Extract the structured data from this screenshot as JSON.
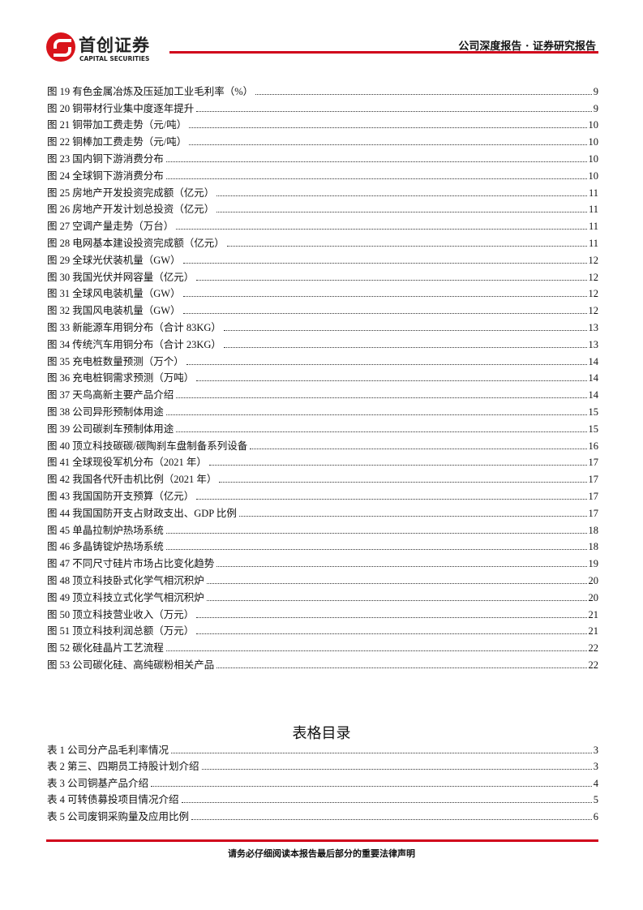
{
  "header": {
    "logo_cn": "首创证券",
    "logo_en": "CAPITAL SECURITIES",
    "title": "公司深度报告 · 证券研究报告",
    "brand_color": "#d0021b"
  },
  "figures": [
    {
      "label": "图 19 有色金属冶炼及压延加工业毛利率（%）",
      "page": "9"
    },
    {
      "label": "图 20 铜带材行业集中度逐年提升",
      "page": "9"
    },
    {
      "label": "图 21 铜带加工费走势（元/吨）",
      "page": "10"
    },
    {
      "label": "图 22 铜棒加工费走势（元/吨）",
      "page": "10"
    },
    {
      "label": "图 23 国内铜下游消费分布",
      "page": "10"
    },
    {
      "label": "图 24 全球铜下游消费分布",
      "page": "10"
    },
    {
      "label": "图 25 房地产开发投资完成额（亿元）",
      "page": "11"
    },
    {
      "label": "图 26 房地产开发计划总投资（亿元）",
      "page": "11"
    },
    {
      "label": "图 27 空调产量走势（万台）",
      "page": "11"
    },
    {
      "label": "图 28 电网基本建设投资完成额（亿元）",
      "page": "11"
    },
    {
      "label": "图 29 全球光伏装机量（GW）",
      "page": "12"
    },
    {
      "label": "图 30 我国光伏并网容量（亿元）",
      "page": "12"
    },
    {
      "label": "图 31 全球风电装机量（GW）",
      "page": "12"
    },
    {
      "label": "图 32 我国风电装机量（GW）",
      "page": "12"
    },
    {
      "label": "图 33 新能源车用铜分布（合计 83KG）",
      "page": "13"
    },
    {
      "label": "图 34 传统汽车用铜分布（合计 23KG）",
      "page": "13"
    },
    {
      "label": "图 35 充电桩数量预测（万个）",
      "page": "14"
    },
    {
      "label": "图 36 充电桩铜需求预测（万吨）",
      "page": "14"
    },
    {
      "label": "图 37 天鸟高新主要产品介绍",
      "page": "14"
    },
    {
      "label": "图 38 公司异形预制体用途",
      "page": "15"
    },
    {
      "label": "图 39 公司碳刹车预制体用途",
      "page": "15"
    },
    {
      "label": "图 40 顶立科技碳碳/碳陶刹车盘制备系列设备",
      "page": "16"
    },
    {
      "label": "图 41 全球现役军机分布（2021 年）",
      "page": "17"
    },
    {
      "label": "图 42 我国各代歼击机比例（2021 年）",
      "page": "17"
    },
    {
      "label": "图 43 我国国防开支预算（亿元）",
      "page": "17"
    },
    {
      "label": "图 44 我国国防开支占财政支出、GDP 比例",
      "page": "17"
    },
    {
      "label": "图 45 单晶拉制炉热场系统",
      "page": "18"
    },
    {
      "label": "图 46 多晶铸锭炉热场系统",
      "page": "18"
    },
    {
      "label": "图 47 不同尺寸硅片市场占比变化趋势",
      "page": "19"
    },
    {
      "label": "图 48 顶立科技卧式化学气相沉积炉",
      "page": "20"
    },
    {
      "label": "图 49 顶立科技立式化学气相沉积炉",
      "page": "20"
    },
    {
      "label": "图 50 顶立科技营业收入（万元）",
      "page": "21"
    },
    {
      "label": "图 51 顶立科技利润总额（万元）",
      "page": "21"
    },
    {
      "label": "图 52 碳化硅晶片工艺流程",
      "page": "22"
    },
    {
      "label": "图 53 公司碳化硅、高纯碳粉相关产品",
      "page": "22"
    }
  ],
  "tables_title": "表格目录",
  "tables": [
    {
      "label": "表 1 公司分产品毛利率情况",
      "page": "3"
    },
    {
      "label": "表 2 第三、四期员工持股计划介绍",
      "page": "3"
    },
    {
      "label": "表 3 公司铜基产品介绍",
      "page": "4"
    },
    {
      "label": "表 4 可转债募投项目情况介绍",
      "page": "5"
    },
    {
      "label": "表 5 公司废铜采购量及应用比例",
      "page": "6"
    }
  ],
  "footer": {
    "text": "请务必仔细阅读本报告最后部分的重要法律声明"
  }
}
